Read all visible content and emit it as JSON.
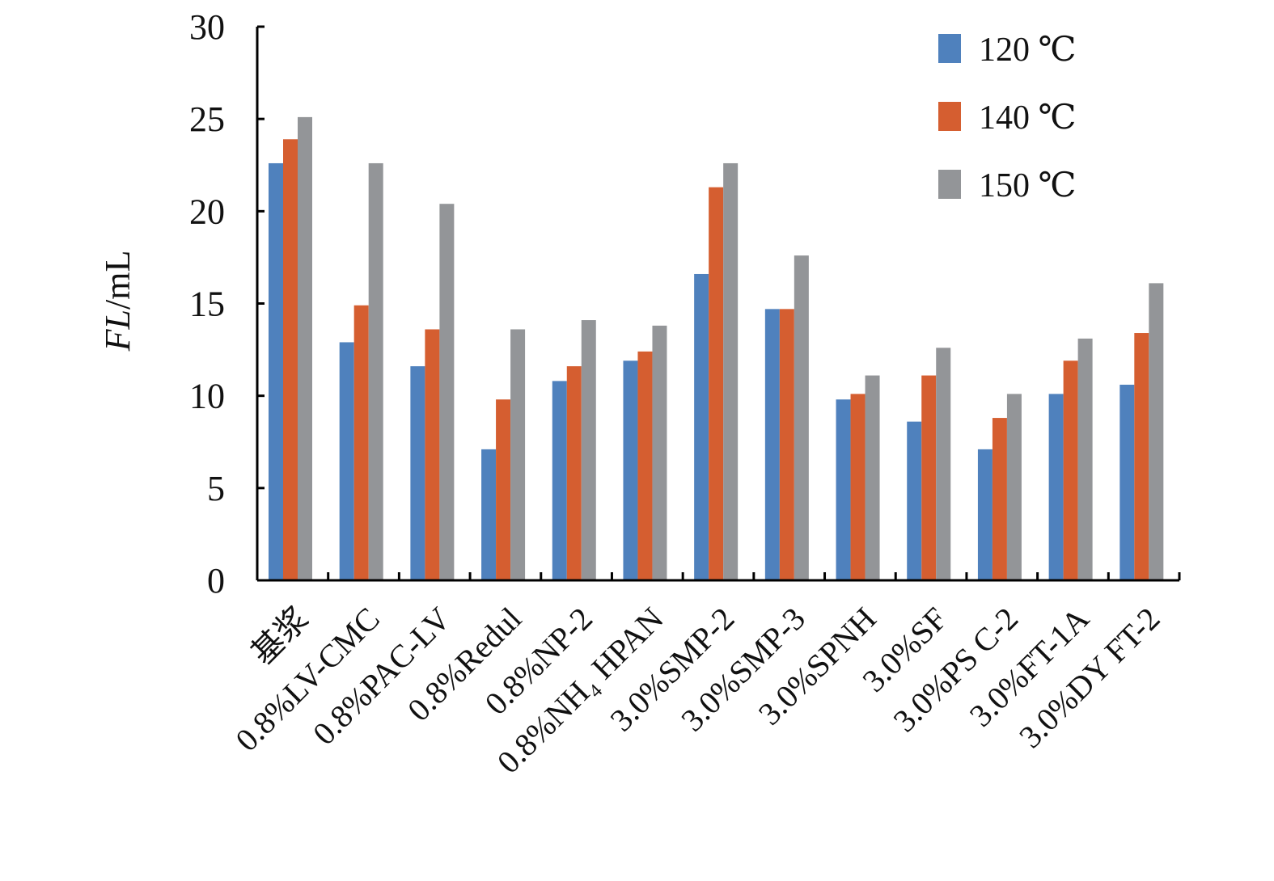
{
  "chart_data": {
    "type": "bar",
    "title": "",
    "xlabel": "",
    "ylabel": {
      "italic": "FL",
      "rest": "/mL"
    },
    "ylim": [
      0,
      30
    ],
    "yticks": [
      0,
      5,
      10,
      15,
      20,
      25,
      30
    ],
    "grid": false,
    "legend_position": "top-right",
    "categories": [
      "基浆",
      "0.8%LV-CMC",
      "0.8%PAC-LV",
      "0.8%Redul",
      "0.8%NP-2",
      "0.8%NH₄ HPAN",
      "3.0%SMP-2",
      "3.0%SMP-3",
      "3.0%SPNH",
      "3.0%SF",
      "3.0%PS C-2",
      "3.0%FT-1A",
      "3.0%DY FT-2"
    ],
    "series": [
      {
        "name": "120 ℃",
        "color": "#4F81BD",
        "values": [
          22.6,
          12.9,
          11.6,
          7.1,
          10.8,
          11.9,
          16.6,
          14.7,
          9.8,
          8.6,
          7.1,
          10.1,
          10.6
        ]
      },
      {
        "name": "140 ℃",
        "color": "#D55E30",
        "values": [
          23.9,
          14.9,
          13.6,
          9.8,
          11.6,
          12.4,
          21.3,
          14.7,
          10.1,
          11.1,
          8.8,
          11.9,
          13.4
        ]
      },
      {
        "name": "150 ℃",
        "color": "#939598",
        "values": [
          25.1,
          22.6,
          20.4,
          13.6,
          14.1,
          13.8,
          22.6,
          17.6,
          11.1,
          12.6,
          10.1,
          13.1,
          16.1
        ]
      }
    ]
  }
}
